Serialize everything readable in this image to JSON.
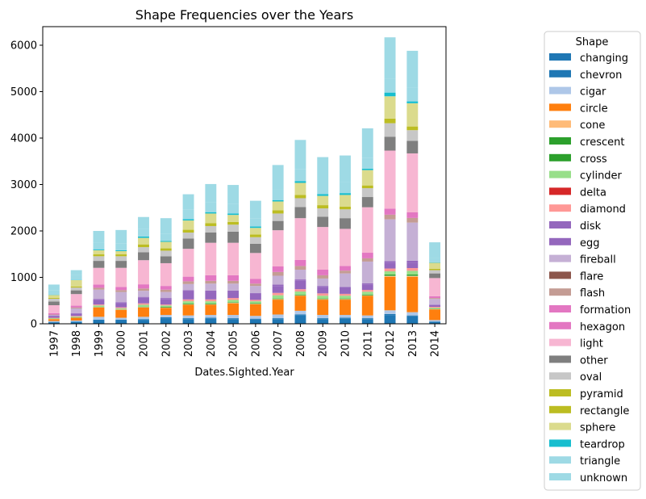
{
  "chart_data": {
    "type": "bar",
    "stacked": true,
    "title": "Shape Frequencies over the Years",
    "xlabel": "Dates.Sighted.Year",
    "ylabel": "",
    "ylim": [
      0,
      6400
    ],
    "yticks": [
      0,
      1000,
      2000,
      3000,
      4000,
      5000,
      6000
    ],
    "grid": false,
    "legend_position": "right, outside plot",
    "legend_title": "Shape",
    "categories": [
      "1997",
      "1998",
      "1999",
      "2000",
      "2001",
      "2002",
      "2003",
      "2004",
      "2005",
      "2006",
      "2007",
      "2008",
      "2009",
      "2010",
      "2011",
      "2012",
      "2013",
      "2014"
    ],
    "series": [
      {
        "name": "changing",
        "color": "#1f77b4",
        "values": [
          30,
          40,
          70,
          70,
          80,
          120,
          100,
          110,
          100,
          90,
          100,
          180,
          100,
          110,
          100,
          180,
          160,
          40
        ]
      },
      {
        "name": "chevron",
        "color": "#1f77b4",
        "values": [
          10,
          10,
          20,
          20,
          20,
          20,
          20,
          20,
          20,
          20,
          20,
          20,
          20,
          20,
          20,
          30,
          20,
          10
        ]
      },
      {
        "name": "cigar",
        "color": "#aec7e8",
        "values": [
          20,
          20,
          60,
          40,
          50,
          50,
          60,
          60,
          70,
          60,
          80,
          80,
          70,
          60,
          60,
          80,
          70,
          30
        ]
      },
      {
        "name": "circle",
        "color": "#ff7f0e",
        "values": [
          40,
          60,
          200,
          170,
          200,
          150,
          230,
          220,
          250,
          250,
          320,
          320,
          330,
          330,
          420,
          720,
          760,
          230
        ]
      },
      {
        "name": "cone",
        "color": "#ffbb78",
        "values": [
          5,
          5,
          10,
          10,
          10,
          10,
          10,
          10,
          10,
          10,
          10,
          10,
          10,
          10,
          10,
          20,
          20,
          5
        ]
      },
      {
        "name": "crescent",
        "color": "#2ca02c",
        "values": [
          0,
          0,
          0,
          0,
          0,
          5,
          5,
          5,
          5,
          5,
          5,
          5,
          5,
          5,
          10,
          10,
          10,
          5
        ]
      },
      {
        "name": "cross",
        "color": "#2ca02c",
        "values": [
          5,
          5,
          5,
          5,
          10,
          10,
          10,
          10,
          10,
          10,
          10,
          10,
          10,
          10,
          10,
          20,
          20,
          5
        ]
      },
      {
        "name": "cylinder",
        "color": "#98df8a",
        "values": [
          10,
          15,
          30,
          20,
          40,
          30,
          50,
          50,
          50,
          40,
          70,
          70,
          60,
          60,
          60,
          70,
          80,
          20
        ]
      },
      {
        "name": "delta",
        "color": "#d62728",
        "values": [
          0,
          0,
          0,
          0,
          0,
          0,
          0,
          0,
          0,
          0,
          0,
          0,
          0,
          0,
          0,
          0,
          0,
          0
        ]
      },
      {
        "name": "diamond",
        "color": "#ff9896",
        "values": [
          10,
          15,
          20,
          20,
          30,
          20,
          40,
          40,
          40,
          30,
          50,
          50,
          50,
          40,
          40,
          60,
          60,
          20
        ]
      },
      {
        "name": "disk",
        "color": "#9467bd",
        "values": [
          40,
          50,
          100,
          90,
          120,
          120,
          180,
          170,
          140,
          130,
          150,
          180,
          130,
          120,
          110,
          120,
          120,
          40
        ]
      },
      {
        "name": "egg",
        "color": "#9467bd",
        "values": [
          10,
          10,
          20,
          20,
          20,
          20,
          20,
          20,
          20,
          20,
          30,
          30,
          30,
          30,
          30,
          40,
          40,
          10
        ]
      },
      {
        "name": "fireball",
        "color": "#c5b0d5",
        "values": [
          10,
          100,
          200,
          220,
          130,
          130,
          130,
          150,
          150,
          150,
          190,
          210,
          160,
          290,
          470,
          900,
          820,
          120
        ]
      },
      {
        "name": "flare",
        "color": "#8c564b",
        "values": [
          0,
          0,
          0,
          0,
          0,
          0,
          0,
          0,
          0,
          0,
          0,
          0,
          0,
          0,
          0,
          0,
          0,
          0
        ]
      },
      {
        "name": "flash",
        "color": "#c49c94",
        "values": [
          10,
          20,
          40,
          40,
          50,
          50,
          60,
          60,
          60,
          50,
          80,
          80,
          70,
          60,
          70,
          100,
          100,
          20
        ]
      },
      {
        "name": "formation",
        "color": "#e377c2",
        "values": [
          30,
          40,
          70,
          70,
          90,
          80,
          100,
          120,
          120,
          100,
          120,
          130,
          120,
          100,
          120,
          130,
          120,
          40
        ]
      },
      {
        "name": "hexagon",
        "color": "#e377c2",
        "values": [
          0,
          0,
          0,
          0,
          0,
          0,
          0,
          0,
          0,
          0,
          0,
          0,
          0,
          0,
          0,
          0,
          0,
          0
        ]
      },
      {
        "name": "light",
        "color": "#f7b6d2",
        "values": [
          170,
          250,
          360,
          410,
          520,
          490,
          600,
          700,
          700,
          560,
          780,
          900,
          920,
          800,
          980,
          1250,
          1270,
          390
        ]
      },
      {
        "name": "other",
        "color": "#7f7f7f",
        "values": [
          80,
          80,
          150,
          150,
          170,
          150,
          220,
          220,
          240,
          200,
          200,
          240,
          220,
          230,
          220,
          300,
          270,
          100
        ]
      },
      {
        "name": "oval",
        "color": "#c7c7c7",
        "values": [
          60,
          60,
          100,
          100,
          110,
          120,
          130,
          140,
          150,
          140,
          160,
          190,
          180,
          190,
          190,
          290,
          230,
          70
        ]
      },
      {
        "name": "pyramid",
        "color": "#bcbd22",
        "values": [
          0,
          0,
          0,
          0,
          0,
          0,
          0,
          0,
          0,
          0,
          0,
          0,
          0,
          0,
          0,
          0,
          0,
          0
        ]
      },
      {
        "name": "rectangle",
        "color": "#bcbd22",
        "values": [
          20,
          20,
          40,
          40,
          60,
          50,
          60,
          60,
          60,
          60,
          70,
          70,
          70,
          60,
          60,
          100,
          80,
          30
        ]
      },
      {
        "name": "sphere",
        "color": "#dbdb8d",
        "values": [
          60,
          140,
          90,
          70,
          140,
          140,
          200,
          210,
          150,
          140,
          190,
          260,
          200,
          250,
          330,
          480,
          500,
          130
        ]
      },
      {
        "name": "teardrop",
        "color": "#17becf",
        "values": [
          5,
          5,
          20,
          20,
          30,
          20,
          30,
          30,
          30,
          30,
          30,
          40,
          40,
          40,
          30,
          80,
          40,
          10
        ]
      },
      {
        "name": "triangle",
        "color": "#9edae5",
        "values": [
          100,
          100,
          150,
          150,
          170,
          160,
          210,
          210,
          210,
          180,
          230,
          250,
          240,
          230,
          230,
          300,
          290,
          100
        ]
      },
      {
        "name": "unknown",
        "color": "#9edae5",
        "values": [
          120,
          110,
          245,
          285,
          250,
          330,
          325,
          395,
          405,
          375,
          525,
          635,
          555,
          580,
          640,
          890,
          800,
          330
        ]
      }
    ]
  }
}
